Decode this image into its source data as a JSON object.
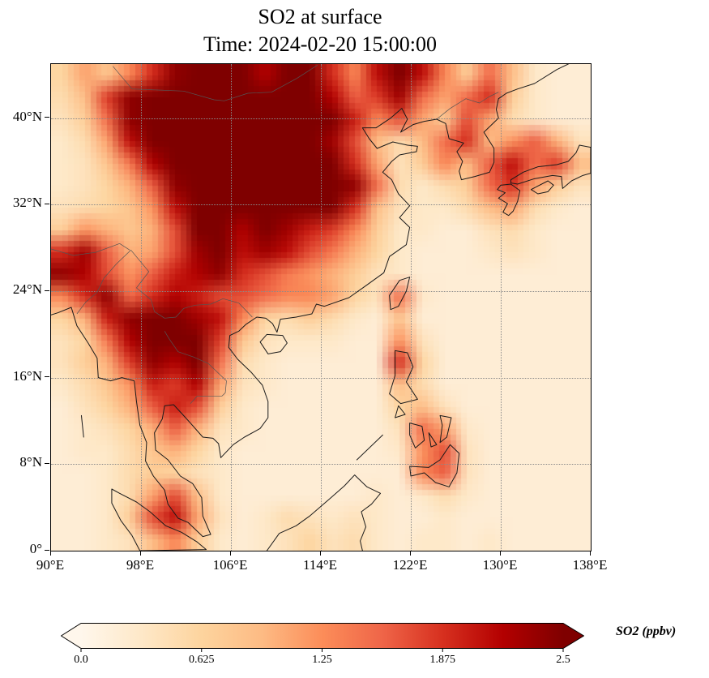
{
  "figure": {
    "background": "#ffffff"
  },
  "title": {
    "line1": "SO2 at surface",
    "line2": "Time: 2024-02-20 15:00:00"
  },
  "axes": {
    "x": {
      "min": 90,
      "max": 138,
      "values": [
        90,
        98,
        106,
        114,
        122,
        130,
        138
      ],
      "labels": [
        "90°E",
        "98°E",
        "106°E",
        "114°E",
        "122°E",
        "130°E",
        "138°E"
      ]
    },
    "y": {
      "min": 0,
      "max": 45,
      "values": [
        0,
        8,
        16,
        24,
        32,
        40
      ],
      "labels": [
        "0°",
        "8°N",
        "16°N",
        "24°N",
        "32°N",
        "40°N"
      ]
    },
    "grid_style": "dotted"
  },
  "colorbar": {
    "label": "SO2 (ppbv)",
    "min": 0,
    "max": 2.5,
    "tick_values": [
      0,
      0.625,
      1.25,
      1.875,
      2.5
    ],
    "tick_labels": [
      "0.0",
      "0.625",
      "1.25",
      "1.875",
      "2.5"
    ],
    "extend": "both"
  },
  "chart_data": {
    "type": "heatmap",
    "title": "SO2 at surface",
    "subtitle": "Time: 2024-02-20 15:00:00",
    "variable": "SO2",
    "units": "ppbv",
    "lon_range": [
      90,
      138
    ],
    "lat_range": [
      0,
      45
    ],
    "vmin": 0,
    "vmax": 2.5,
    "colormap_name": "OrRd",
    "colormap": [
      {
        "t": 0.0,
        "c": "#fff7ec"
      },
      {
        "t": 0.125,
        "c": "#fee8c8"
      },
      {
        "t": 0.25,
        "c": "#fdd49e"
      },
      {
        "t": 0.375,
        "c": "#fdbb84"
      },
      {
        "t": 0.5,
        "c": "#fc8d59"
      },
      {
        "t": 0.625,
        "c": "#ef6548"
      },
      {
        "t": 0.75,
        "c": "#d7301f"
      },
      {
        "t": 0.875,
        "c": "#b30000"
      },
      {
        "t": 1.0,
        "c": "#7f0000"
      }
    ],
    "grid": {
      "cols": 24,
      "rows": 22,
      "order": "north-to-south",
      "values": [
        [
          0.6,
          1.1,
          0.8,
          1.3,
          1.9,
          2.4,
          2.5,
          2.5,
          2.5,
          2.2,
          2.5,
          2.5,
          1.9,
          1.3,
          2.1,
          2.5,
          2.1,
          1.3,
          0.7,
          1.5,
          0.9,
          0.3,
          0.2,
          0.2
        ],
        [
          0.5,
          0.9,
          1.8,
          2.4,
          2.5,
          2.5,
          2.5,
          2.5,
          2.5,
          2.5,
          2.5,
          2.5,
          2.2,
          1.6,
          1.8,
          2.3,
          1.5,
          1.1,
          1.5,
          1.9,
          0.7,
          0.3,
          0.2,
          0.2
        ],
        [
          0.4,
          0.7,
          1.5,
          2.4,
          2.5,
          2.5,
          2.5,
          2.5,
          2.5,
          2.5,
          2.5,
          2.5,
          2.5,
          2.0,
          1.3,
          1.7,
          1.1,
          0.7,
          1.7,
          1.1,
          0.5,
          0.3,
          0.2,
          0.2
        ],
        [
          0.3,
          0.5,
          1.1,
          2.1,
          2.5,
          2.5,
          2.5,
          2.5,
          2.5,
          2.5,
          2.5,
          2.5,
          2.3,
          1.7,
          0.9,
          0.5,
          0.9,
          1.5,
          1.9,
          0.9,
          1.2,
          1.6,
          1.0,
          0.4
        ],
        [
          0.3,
          0.4,
          0.8,
          1.4,
          2.2,
          2.5,
          2.5,
          2.5,
          2.5,
          2.5,
          2.5,
          2.5,
          2.5,
          1.9,
          1.1,
          0.4,
          0.7,
          1.3,
          0.9,
          1.6,
          2.1,
          1.5,
          1.8,
          0.9
        ],
        [
          0.3,
          0.4,
          0.6,
          1.0,
          1.6,
          2.4,
          2.5,
          2.5,
          2.5,
          2.5,
          2.5,
          2.5,
          2.5,
          2.4,
          1.5,
          0.5,
          0.3,
          0.5,
          0.7,
          1.5,
          1.9,
          1.1,
          0.7,
          0.4
        ],
        [
          0.4,
          0.5,
          0.6,
          0.8,
          1.2,
          2.1,
          2.5,
          2.5,
          2.5,
          2.5,
          2.5,
          2.5,
          2.5,
          1.9,
          0.9,
          0.4,
          0.3,
          0.3,
          0.5,
          0.9,
          1.1,
          0.5,
          0.3,
          0.2
        ],
        [
          0.7,
          1.2,
          1.0,
          0.8,
          1.0,
          1.7,
          2.5,
          2.5,
          2.2,
          2.5,
          2.3,
          2.0,
          1.8,
          1.3,
          0.7,
          0.3,
          0.3,
          0.2,
          0.2,
          0.4,
          0.5,
          0.3,
          0.2,
          0.2
        ],
        [
          1.9,
          2.3,
          1.6,
          1.0,
          1.1,
          1.7,
          2.3,
          2.5,
          2.1,
          2.3,
          2.1,
          1.7,
          1.4,
          1.0,
          0.6,
          0.3,
          0.2,
          0.2,
          0.2,
          0.3,
          0.4,
          0.3,
          0.2,
          0.2
        ],
        [
          2.4,
          2.2,
          1.7,
          1.2,
          1.6,
          2.0,
          2.2,
          2.4,
          1.9,
          1.7,
          1.4,
          1.2,
          1.0,
          0.7,
          0.4,
          0.3,
          0.2,
          0.2,
          0.2,
          0.2,
          0.2,
          0.2,
          0.2,
          0.2
        ],
        [
          1.3,
          1.9,
          2.4,
          1.5,
          1.9,
          2.2,
          2.0,
          1.7,
          1.7,
          1.5,
          1.3,
          1.3,
          1.1,
          0.6,
          0.4,
          1.5,
          0.3,
          0.2,
          0.2,
          0.2,
          0.2,
          0.2,
          0.2,
          0.2
        ],
        [
          0.6,
          1.0,
          2.0,
          2.4,
          2.5,
          2.5,
          2.3,
          2.1,
          1.3,
          0.6,
          0.5,
          0.7,
          0.5,
          0.3,
          0.2,
          0.8,
          0.2,
          0.2,
          0.2,
          0.2,
          0.2,
          0.2,
          0.2,
          0.2
        ],
        [
          0.4,
          0.6,
          1.4,
          2.2,
          2.5,
          2.5,
          2.5,
          1.8,
          0.8,
          0.4,
          0.3,
          0.3,
          0.3,
          0.2,
          0.2,
          1.2,
          0.4,
          0.2,
          0.2,
          0.2,
          0.2,
          0.2,
          0.2,
          0.2
        ],
        [
          0.4,
          0.7,
          1.0,
          1.8,
          2.4,
          2.2,
          2.5,
          1.5,
          0.5,
          0.3,
          0.2,
          0.2,
          0.2,
          0.2,
          0.2,
          1.9,
          0.6,
          0.2,
          0.2,
          0.2,
          0.2,
          0.2,
          0.2,
          0.2
        ],
        [
          0.3,
          0.5,
          0.8,
          1.2,
          2.0,
          1.8,
          2.2,
          1.1,
          0.4,
          0.3,
          0.2,
          0.2,
          0.2,
          0.2,
          0.2,
          0.9,
          0.5,
          0.2,
          0.2,
          0.2,
          0.2,
          0.2,
          0.2,
          0.2
        ],
        [
          0.2,
          0.4,
          0.6,
          1.0,
          1.6,
          2.0,
          1.7,
          0.7,
          0.3,
          0.2,
          0.2,
          0.2,
          0.2,
          0.2,
          0.2,
          0.6,
          0.9,
          0.4,
          0.2,
          0.2,
          0.2,
          0.2,
          0.2,
          0.2
        ],
        [
          0.2,
          0.3,
          0.4,
          0.6,
          1.0,
          1.6,
          1.0,
          0.4,
          0.3,
          0.2,
          0.2,
          0.2,
          0.2,
          0.2,
          0.2,
          0.4,
          1.5,
          1.1,
          0.3,
          0.2,
          0.2,
          0.2,
          0.2,
          0.2
        ],
        [
          0.2,
          0.3,
          0.3,
          0.5,
          0.8,
          1.0,
          0.6,
          0.3,
          0.2,
          0.2,
          0.2,
          0.2,
          0.2,
          0.2,
          0.2,
          0.3,
          1.2,
          1.7,
          0.4,
          0.2,
          0.2,
          0.2,
          0.2,
          0.2
        ],
        [
          0.2,
          0.2,
          0.3,
          0.5,
          0.7,
          0.6,
          0.4,
          0.3,
          0.2,
          0.2,
          0.2,
          0.2,
          0.2,
          0.2,
          0.2,
          0.2,
          1.3,
          1.6,
          0.4,
          0.2,
          0.2,
          0.2,
          0.2,
          0.2
        ],
        [
          0.2,
          0.2,
          0.3,
          0.5,
          1.1,
          1.7,
          0.9,
          0.3,
          0.2,
          0.2,
          0.2,
          0.2,
          0.2,
          0.2,
          0.3,
          0.2,
          0.3,
          0.5,
          0.3,
          0.2,
          0.2,
          0.2,
          0.2,
          0.2
        ],
        [
          0.2,
          0.2,
          0.3,
          0.7,
          1.7,
          2.1,
          1.1,
          0.4,
          0.2,
          0.3,
          0.5,
          0.4,
          0.3,
          0.4,
          0.3,
          0.2,
          0.2,
          0.3,
          0.2,
          0.2,
          0.2,
          0.2,
          0.2,
          0.2
        ],
        [
          0.2,
          0.2,
          0.3,
          0.4,
          0.9,
          1.3,
          0.7,
          0.3,
          0.2,
          0.3,
          0.4,
          0.6,
          0.4,
          0.5,
          0.3,
          0.2,
          0.3,
          0.3,
          0.2,
          0.3,
          0.2,
          0.2,
          0.2,
          0.2
        ]
      ]
    }
  }
}
